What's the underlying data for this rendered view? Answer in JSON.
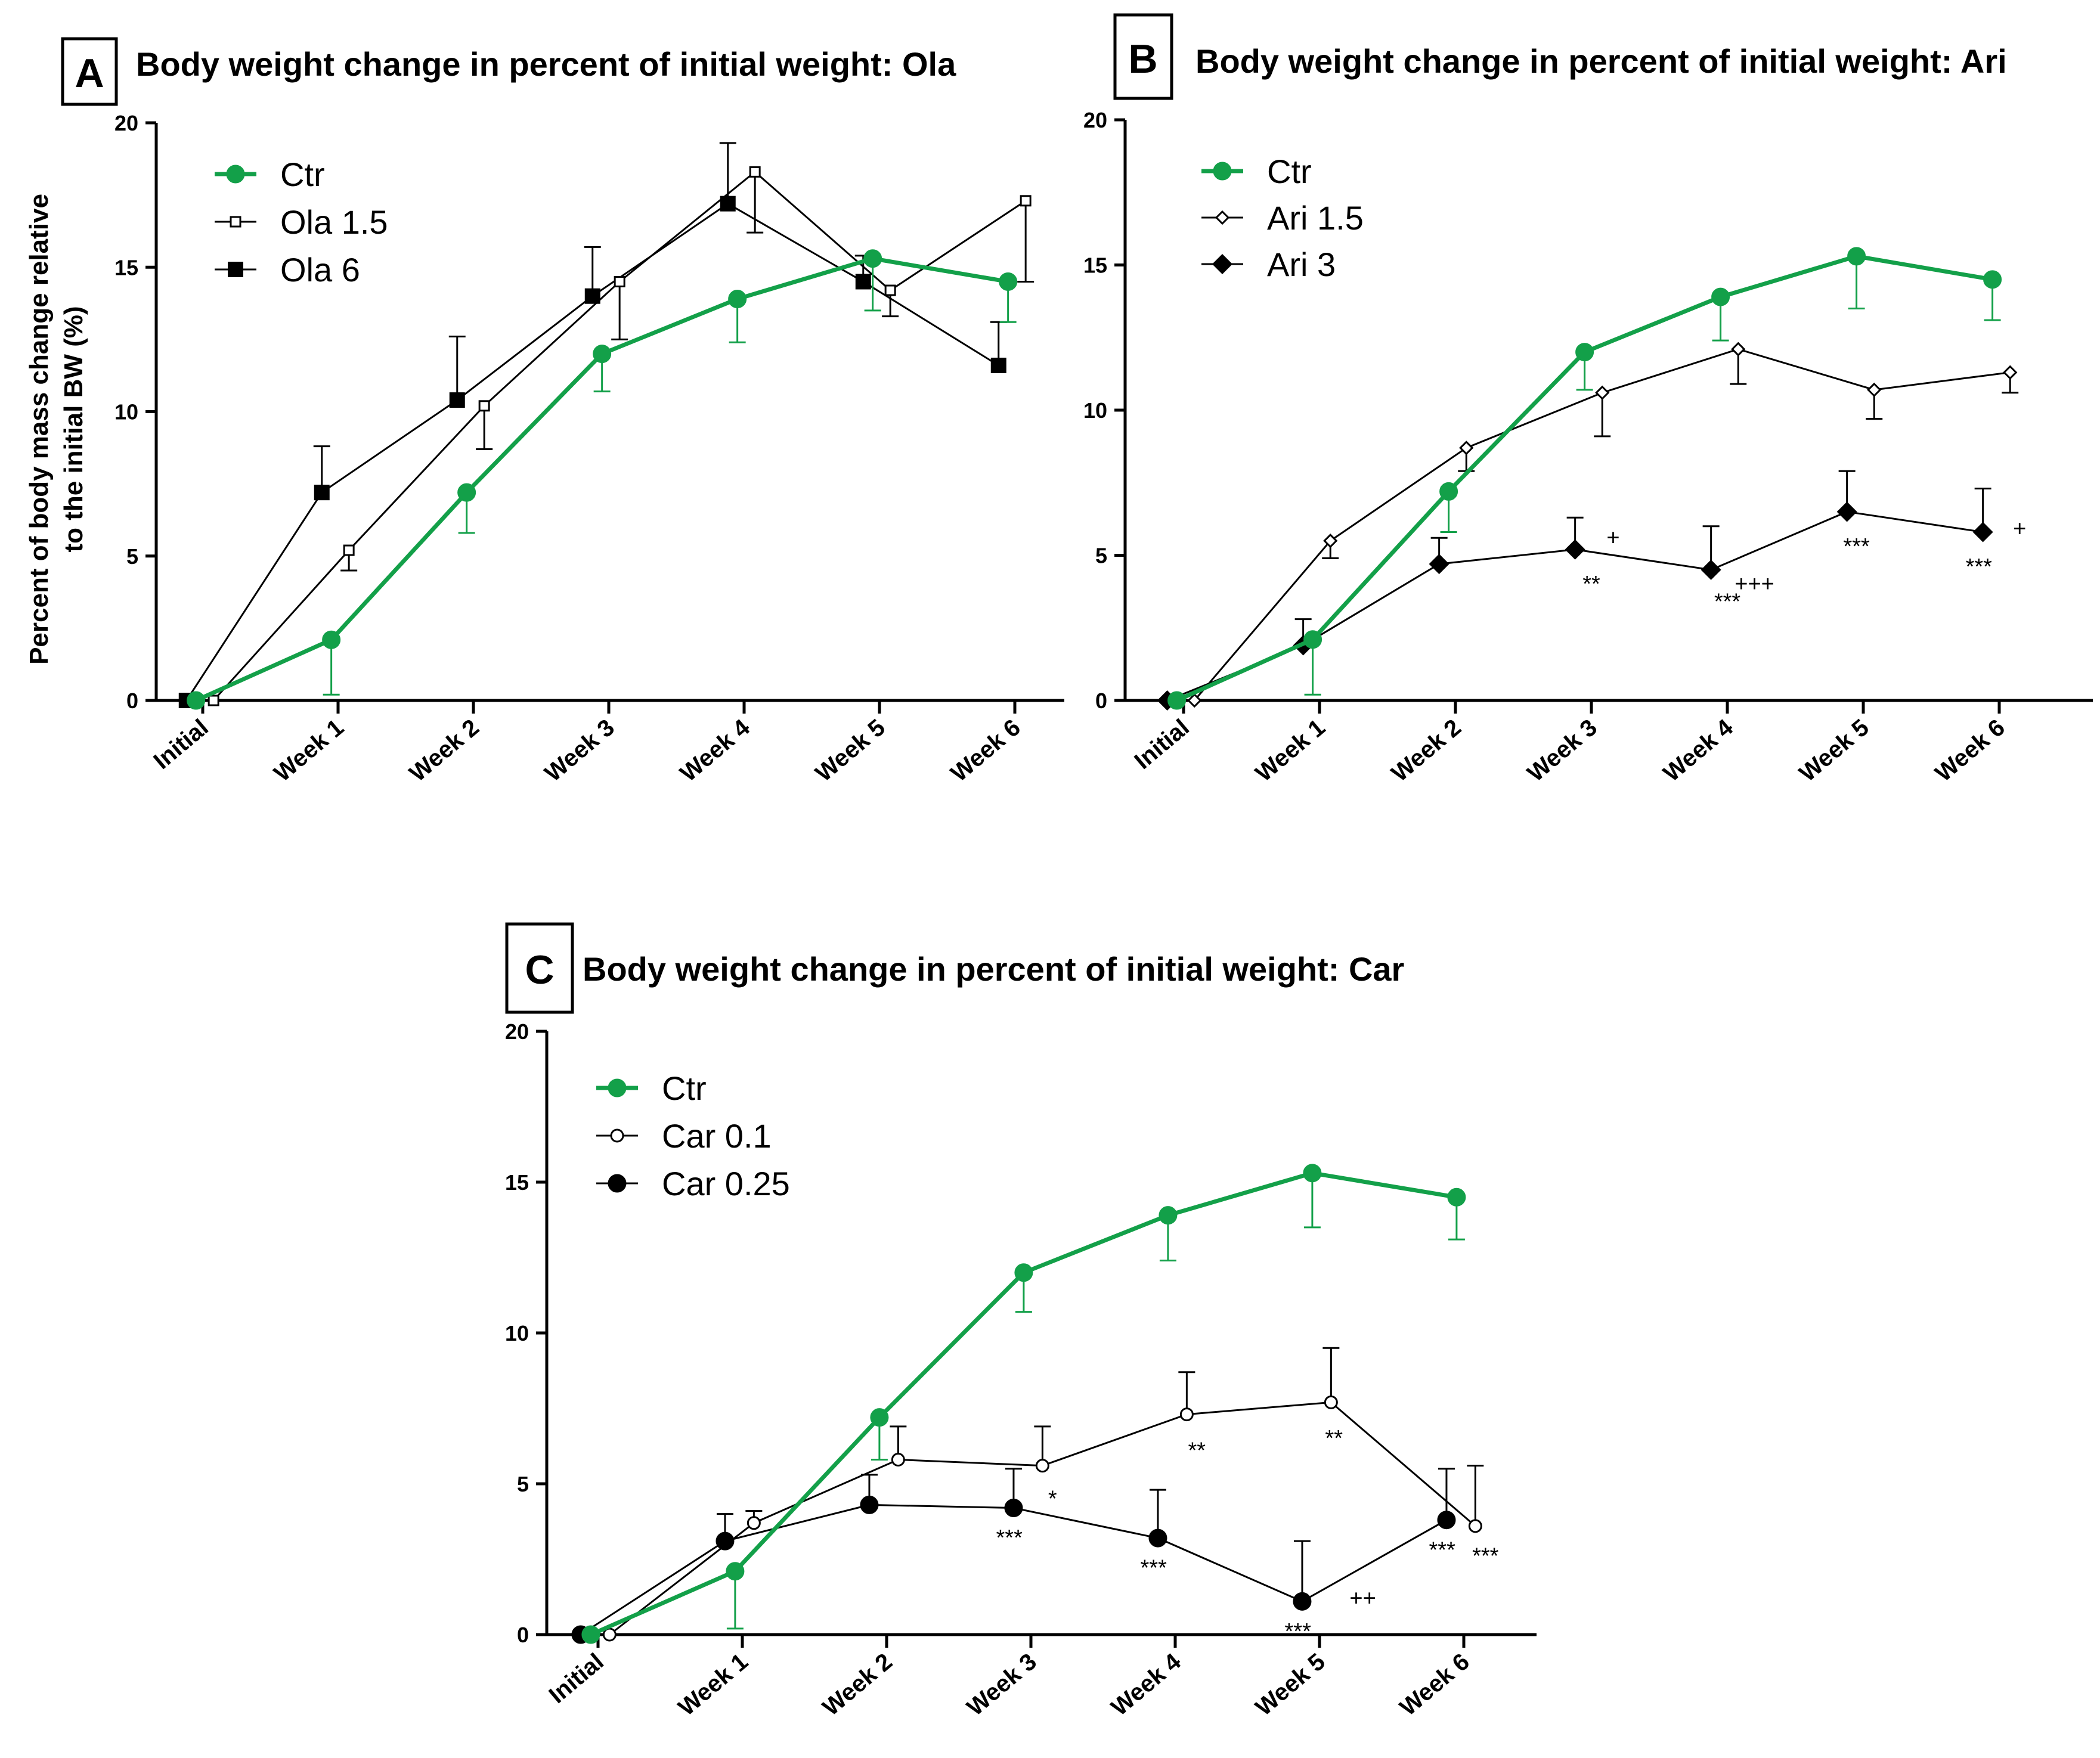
{
  "colors": {
    "ctr": "#13a049",
    "black": "#000000"
  },
  "x_categories": [
    "Initial",
    "Week 1",
    "Week 2",
    "Week 3",
    "Week 4",
    "Week 5",
    "Week 6"
  ],
  "chart_data": [
    {
      "id": "A",
      "type": "line",
      "panel_letter": "A",
      "title": "Body weight change in percent of initial weight: Ola",
      "ylabel_line1": "Percent of body mass change relative",
      "ylabel_line2": "to the initial BW (%)",
      "ylim": [
        0,
        20
      ],
      "yticks": [
        0,
        5,
        10,
        15,
        20
      ],
      "categories": [
        "Initial",
        "Week 1",
        "Week 2",
        "Week 3",
        "Week 4",
        "Week 5",
        "Week 6"
      ],
      "series": [
        {
          "name": "Ctr",
          "marker": "circle-filled",
          "color": "#13a049",
          "values": [
            0,
            2.1,
            7.2,
            12.0,
            13.9,
            15.3,
            14.5
          ],
          "errors": [
            0,
            1.9,
            1.4,
            1.3,
            1.5,
            1.8,
            1.4
          ],
          "err_dir": "down"
        },
        {
          "name": "Ola 1.5",
          "marker": "square-open",
          "color": "#000000",
          "values": [
            0,
            5.2,
            10.2,
            14.5,
            18.3,
            14.2,
            17.3
          ],
          "errors": [
            0,
            0.7,
            1.5,
            2.0,
            2.1,
            0.9,
            2.8
          ],
          "err_dir": "down"
        },
        {
          "name": "Ola 6",
          "marker": "square-filled",
          "color": "#000000",
          "values": [
            0,
            7.2,
            10.4,
            14.0,
            17.2,
            14.5,
            11.6
          ],
          "errors": [
            0,
            1.6,
            2.2,
            1.7,
            2.1,
            0.9,
            1.5
          ],
          "err_dir": "up"
        }
      ],
      "annotations": []
    },
    {
      "id": "B",
      "type": "line",
      "panel_letter": "B",
      "title": "Body weight change in percent of initial weight: Ari",
      "ylim": [
        0,
        20
      ],
      "yticks": [
        0,
        5,
        10,
        15,
        20
      ],
      "categories": [
        "Initial",
        "Week 1",
        "Week 2",
        "Week 3",
        "Week 4",
        "Week 5",
        "Week 6"
      ],
      "series": [
        {
          "name": "Ctr",
          "marker": "circle-filled",
          "color": "#13a049",
          "values": [
            0,
            2.1,
            7.2,
            12.0,
            13.9,
            15.3,
            14.5
          ],
          "errors": [
            0,
            1.9,
            1.4,
            1.3,
            1.5,
            1.8,
            1.4
          ],
          "err_dir": "down"
        },
        {
          "name": "Ari 1.5",
          "marker": "diamond-open",
          "color": "#000000",
          "values": [
            0,
            5.5,
            8.7,
            10.6,
            12.1,
            10.7,
            11.3
          ],
          "errors": [
            0,
            0.6,
            0.8,
            1.5,
            1.2,
            1.0,
            0.7
          ],
          "err_dir": "down"
        },
        {
          "name": "Ari 3",
          "marker": "diamond-filled",
          "color": "#000000",
          "values": [
            0,
            1.9,
            4.7,
            5.2,
            4.5,
            6.5,
            5.8
          ],
          "errors": [
            0,
            0.9,
            0.9,
            1.1,
            1.5,
            1.4,
            1.5
          ],
          "err_dir": "up"
        }
      ],
      "annotations": [
        {
          "text": "+",
          "cat": 3,
          "dx": 0.16,
          "y": 5.6
        },
        {
          "text": "**",
          "cat": 3,
          "dx": 0.0,
          "y": 4.0
        },
        {
          "text": "+++",
          "cat": 4,
          "dx": 0.2,
          "y": 4.0
        },
        {
          "text": "***",
          "cat": 4,
          "dx": 0.0,
          "y": 3.4
        },
        {
          "text": "***",
          "cat": 5,
          "dx": -0.05,
          "y": 5.3
        },
        {
          "text": "+",
          "cat": 6,
          "dx": 0.15,
          "y": 5.9
        },
        {
          "text": "***",
          "cat": 6,
          "dx": -0.15,
          "y": 4.6
        }
      ]
    },
    {
      "id": "C",
      "type": "line",
      "panel_letter": "C",
      "title": "Body weight change in percent of initial weight: Car",
      "ylim": [
        0,
        20
      ],
      "yticks": [
        0,
        5,
        10,
        15,
        20
      ],
      "categories": [
        "Initial",
        "Week 1",
        "Week 2",
        "Week 3",
        "Week 4",
        "Week 5",
        "Week 6"
      ],
      "series": [
        {
          "name": "Ctr",
          "marker": "circle-filled",
          "color": "#13a049",
          "values": [
            0,
            2.1,
            7.2,
            12.0,
            13.9,
            15.3,
            14.5
          ],
          "errors": [
            0,
            1.9,
            1.4,
            1.3,
            1.5,
            1.8,
            1.4
          ],
          "err_dir": "down"
        },
        {
          "name": "Car 0.1",
          "marker": "circle-open",
          "color": "#000000",
          "values": [
            0,
            3.7,
            5.8,
            5.6,
            7.3,
            7.7,
            3.6
          ],
          "errors": [
            0,
            0.4,
            1.1,
            1.3,
            1.4,
            1.8,
            2.0
          ],
          "err_dir": "up"
        },
        {
          "name": "Car 0.25",
          "marker": "circle-filled",
          "color": "#000000",
          "values": [
            0,
            3.1,
            4.3,
            4.2,
            3.2,
            1.1,
            3.8
          ],
          "errors": [
            0,
            0.9,
            1.0,
            1.3,
            1.6,
            2.0,
            1.7
          ],
          "err_dir": "up"
        }
      ],
      "annotations": [
        {
          "text": "*",
          "cat": 3,
          "dx": 0.15,
          "y": 4.5
        },
        {
          "text": "***",
          "cat": 3,
          "dx": -0.15,
          "y": 3.2
        },
        {
          "text": "**",
          "cat": 4,
          "dx": 0.15,
          "y": 6.1
        },
        {
          "text": "***",
          "cat": 4,
          "dx": -0.15,
          "y": 2.2
        },
        {
          "text": "**",
          "cat": 5,
          "dx": 0.1,
          "y": 6.5
        },
        {
          "text": "++",
          "cat": 5,
          "dx": 0.3,
          "y": 1.2
        },
        {
          "text": "***",
          "cat": 5,
          "dx": -0.15,
          "y": 0.1
        },
        {
          "text": "***",
          "cat": 6,
          "dx": -0.15,
          "y": 2.8
        },
        {
          "text": "***",
          "cat": 6,
          "dx": 0.15,
          "y": 2.6
        }
      ]
    }
  ]
}
